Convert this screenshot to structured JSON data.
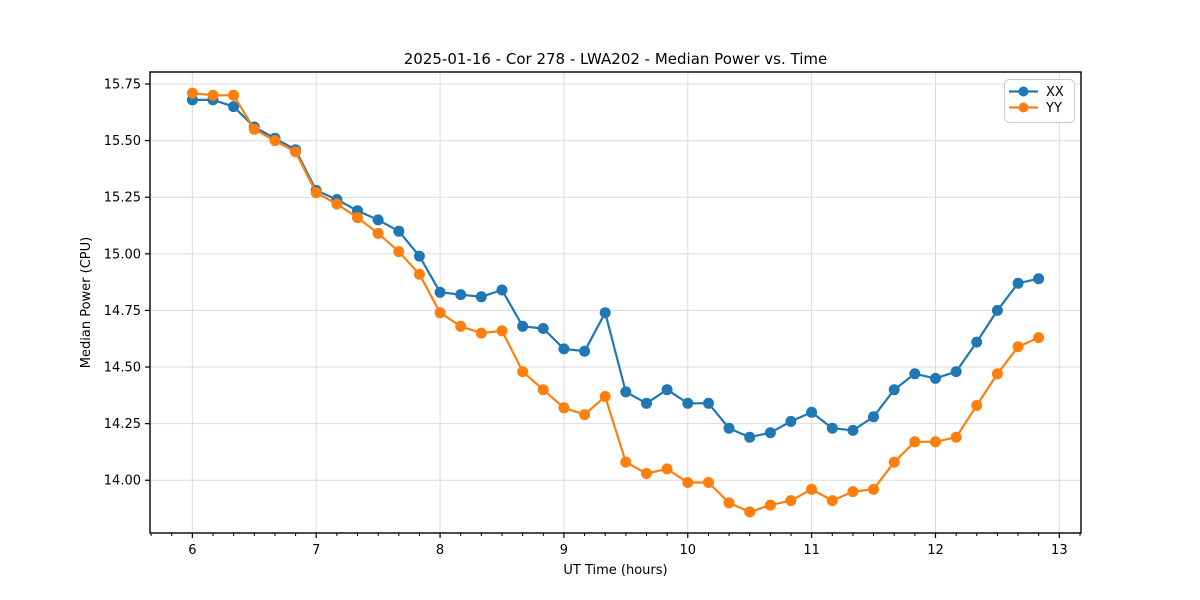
{
  "chart_data": {
    "type": "line",
    "title": "2025-01-16 - Cor 278 - LWA202 - Median Power vs. Time",
    "xlabel": "UT Time (hours)",
    "ylabel": "Median Power (CPU)",
    "xlim": [
      5.658,
      13.175
    ],
    "ylim": [
      13.767,
      15.803
    ],
    "xticks": [
      6,
      7,
      8,
      9,
      10,
      11,
      12,
      13
    ],
    "yticklabels": [
      "14.00",
      "14.25",
      "14.50",
      "14.75",
      "15.00",
      "15.25",
      "15.50",
      "15.75"
    ],
    "x_minor_interval": 0.16667,
    "grid": true,
    "legend_position": "upper right",
    "x": [
      6.0,
      6.167,
      6.333,
      6.5,
      6.667,
      6.833,
      7.0,
      7.167,
      7.333,
      7.5,
      7.667,
      7.833,
      8.0,
      8.167,
      8.333,
      8.5,
      8.667,
      8.833,
      9.0,
      9.167,
      9.333,
      9.5,
      9.667,
      9.833,
      10.0,
      10.167,
      10.333,
      10.5,
      10.667,
      10.833,
      11.0,
      11.167,
      11.333,
      11.5,
      11.667,
      11.833,
      12.0,
      12.167,
      12.333,
      12.5,
      12.667,
      12.833
    ],
    "series": [
      {
        "name": "XX",
        "color": "#1f77b4",
        "values": [
          15.68,
          15.68,
          15.65,
          15.56,
          15.51,
          15.46,
          15.28,
          15.24,
          15.19,
          15.15,
          15.1,
          14.99,
          14.83,
          14.82,
          14.81,
          14.84,
          14.68,
          14.67,
          14.58,
          14.57,
          14.74,
          14.39,
          14.34,
          14.4,
          14.34,
          14.34,
          14.23,
          14.19,
          14.21,
          14.26,
          14.3,
          14.23,
          14.22,
          14.28,
          14.4,
          14.47,
          14.45,
          14.48,
          14.61,
          14.75,
          14.87,
          14.89
        ]
      },
      {
        "name": "YY",
        "color": "#ff7f0e",
        "values": [
          15.71,
          15.7,
          15.7,
          15.55,
          15.5,
          15.45,
          15.27,
          15.22,
          15.16,
          15.09,
          15.01,
          14.91,
          14.74,
          14.68,
          14.65,
          14.66,
          14.48,
          14.4,
          14.32,
          14.29,
          14.37,
          14.08,
          14.03,
          14.05,
          13.99,
          13.99,
          13.9,
          13.86,
          13.89,
          13.91,
          13.96,
          13.91,
          13.95,
          13.96,
          14.08,
          14.17,
          14.17,
          14.19,
          14.33,
          14.47,
          14.59,
          14.63
        ]
      }
    ]
  }
}
